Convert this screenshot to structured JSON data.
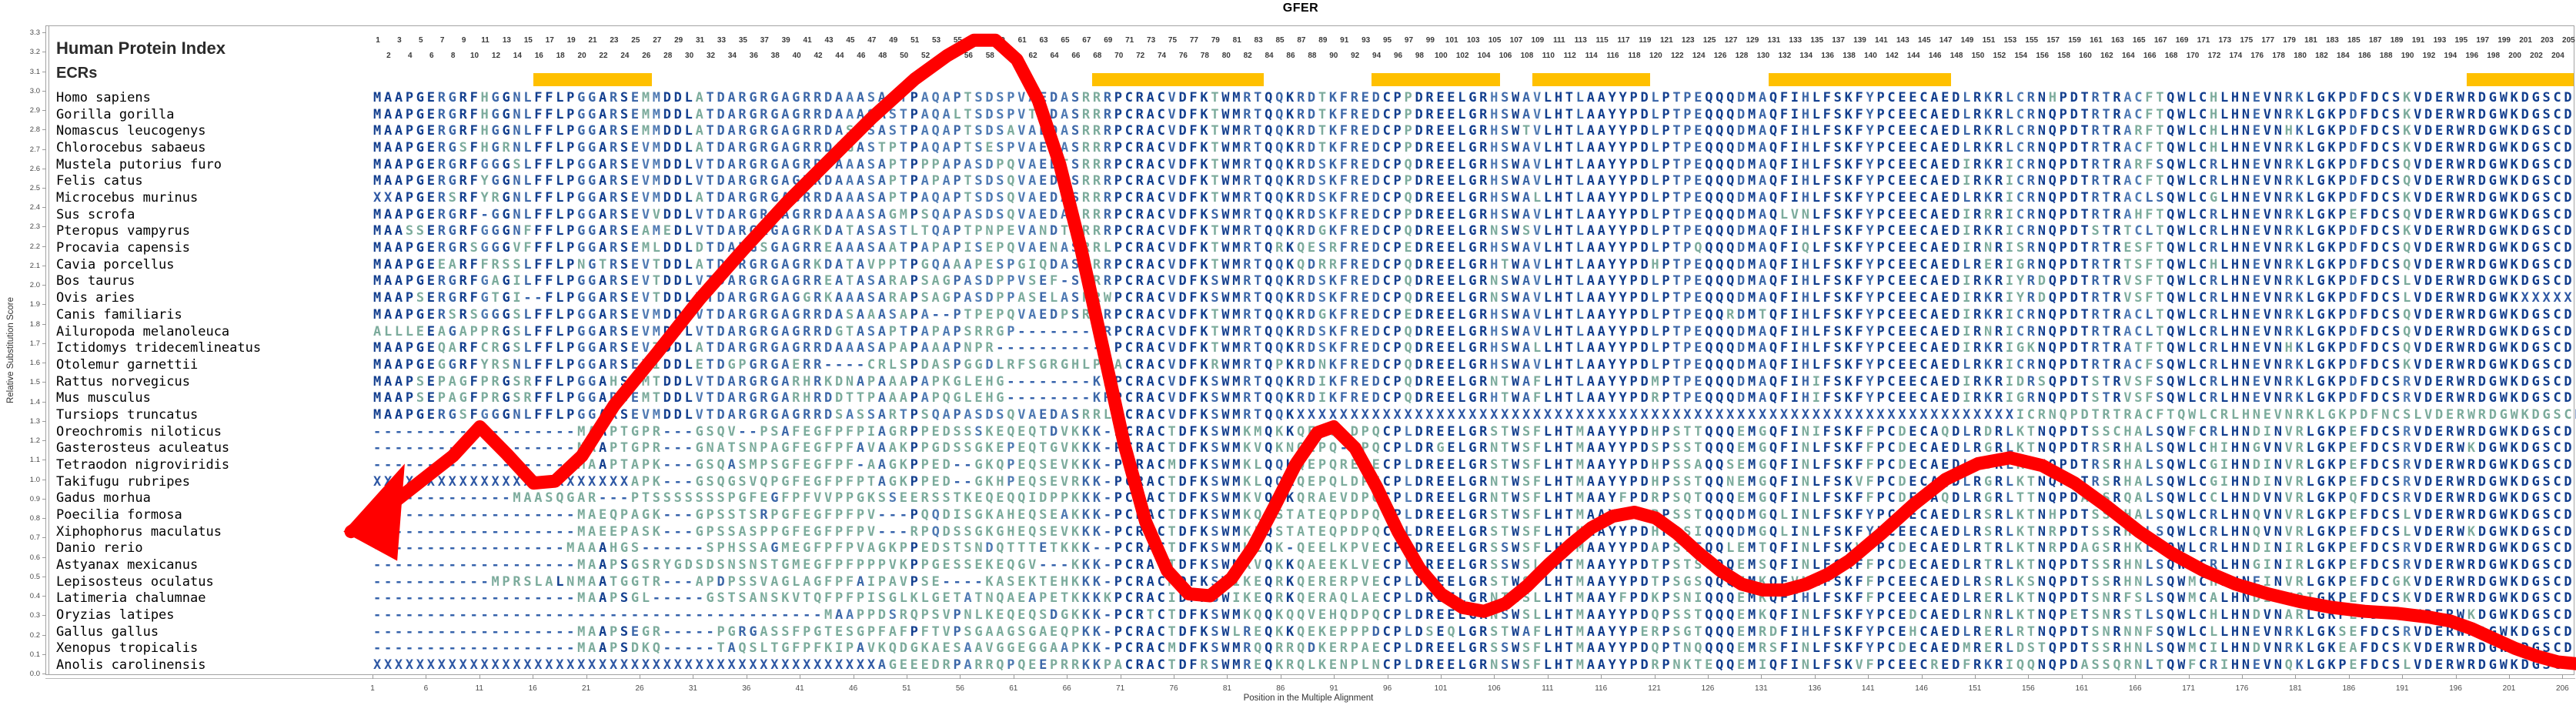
{
  "title": "GFER",
  "left_panel": {
    "header": "Human Protein Index",
    "ecrs_label": "ECRs"
  },
  "axes": {
    "y_label": "Relative Substitution Score",
    "x_label": "Position in the Multiple Alignment",
    "y_ticks": [
      "0.0",
      "0.1",
      "0.2",
      "0.3",
      "0.4",
      "0.5",
      "0.6",
      "0.7",
      "0.8",
      "0.9",
      "1.0",
      "1.1",
      "1.2",
      "1.3",
      "1.4",
      "1.5",
      "1.6",
      "1.7",
      "1.8",
      "1.9",
      "2.0",
      "2.1",
      "2.2",
      "2.3",
      "2.4",
      "2.5",
      "2.6",
      "2.7",
      "2.8",
      "2.9",
      "3.0",
      "3.1",
      "3.2",
      "3.3"
    ],
    "x_ticks": [
      1,
      6,
      11,
      16,
      21,
      26,
      31,
      36,
      41,
      46,
      51,
      56,
      61,
      66,
      71,
      76,
      81,
      86,
      91,
      96,
      101,
      106,
      111,
      116,
      121,
      126,
      131,
      136,
      141,
      146,
      151,
      156,
      161,
      166,
      171,
      176,
      181,
      186,
      191,
      196,
      201,
      206
    ],
    "column_numbers": {
      "start": 1,
      "end": 205
    }
  },
  "colors": {
    "ecr_bar": "#FFC000",
    "curve": "#FF0000",
    "letter_conserved": "#123e8e",
    "letter_majority": "#3c67a8",
    "letter_variable": "#4f7ab3",
    "letter_mismatch": "#7cab9c",
    "letter_gap": "#2f5ea9",
    "letter_x": "#2d57a4"
  },
  "ecr_regions": [
    [
      16,
      26
    ],
    [
      68,
      83
    ],
    [
      94,
      105
    ],
    [
      109,
      119
    ],
    [
      131,
      147
    ],
    [
      196,
      205
    ]
  ],
  "alignment": {
    "rows": [
      {
        "name": "Homo sapiens",
        "seq": "MAAPGERGRFHGGNLFFLPGGARSEMMDDLATDARGRGAGRRDAAASASTPAQAPTSDSPVAEDASRRRPCRACVDFKTWMRTQQKRDTKFREDCPPDREELGRHSWAVLHTLAAYYPDLPTPEQQQDMAQFIHLFSKFYPCEECAEDLRKRLCRNHPDTRTRACFTQWLCHLHNEVNRKLGKPDFDCSKVDERWRDGWKDGSCD"
      },
      {
        "name": "Gorilla gorilla",
        "seq": "MAAPGERGRFHGGNLFFLPGGARSEMMDDLATDARGRGAGRRDAAASASTPAQALTSDSPVTEDASRRRPCRACVDFKTWMRTQQKRDTKFREDCPPDREELGRHSWAVLHTLAAYYPDLPTPEQQQDMAQFIHLFSKFYPCEECAEDLRKRLCRNQPDTRTRACFTQWLCHLHNEVNRKLGKPDFDCSKVDERWRDGWKDGSCD"
      },
      {
        "name": "Nomascus leucogenys",
        "seq": "MAAPGERGRFHGGNLFFLPGGARSEMMDDLATDARGRGAGRRDASASASTPAQAPTSDSAVAEDASRRRPCRACVDFKTWMRTQQKRDTKFREDCPPDREELGRHSWTVLHTLAAYYPDLPTPEQQQDMAQFIHLFSKFYPCEECAEDLRKRLCRNQPDTRTRARFTQWLCHLHNEVNHKLGKPDFDCSKVDERWRDGWKDGSCD"
      },
      {
        "name": "Chlorocebus sabaeus",
        "seq": "MAAPGERGSFHGRNLFFLPGGARSEVMDDLATDARGRGAGRRDAGASTPTPAQAPTSESPVAEDASRRRPCRACVDFKTWMRTQQKRDTKFREDCPPDREELGRHSWAVLHTLAAYYPDLPTPEQQQDMAQFIHLFSKFYPCEECAEDLRKRLCRNQPDTRTRACFTQWLCHLHNEVNRKLGKPDFDCSKVDERWRDGWKDGSCD"
      },
      {
        "name": "Mustela putorius furo",
        "seq": "MAAPGERGRFGGGSLFFLPGGARSEVMDDLVTDARGRGAGRRDAAASAPTPPPAPASDPQVAEDTSRRRPCRACVDFKTWMRTQQKRDSKFREDCPQDREELGRHSWAVLHTLAAYYPDLPTPEQQQDMAQFIHLFSKFYPCEECAEDIRKRICRNQPDTRTRARFSQWLCRLHNEVNRKLGKPDFDCSQVDERWRDGWKDGSCD"
      },
      {
        "name": "Felis catus",
        "seq": "MAAPGERGRFYGGNLFFLPGGARSEVMDDLVTDARGRGAGRRDAAASAPTPAPAPTSDSQVAEDTSRRRPCRACVDFKTWMRTQQKRDSKFREDCPPDREELGRHSWAVLHTLAAYYPDLPTPEQQQDMAQFIHLFSKFYPCEECAEDIRKRICRNQPDTRTRACFTQWLCRLHNEVNRKLGKPDFDCSQVDERWRDGWKDGSCD"
      },
      {
        "name": "Microcebus murinus",
        "seq": "XXAPGERSRFYRGNLFFLPGGARSEVMDDLATDARGRGAGRRDAAASAPTPAQAPTSDSQVAEDASRRRPCRACVDFKTWMRTQQKRDSKFREDCPQDREELGRHSWALLHTLAAYYPDLPTPEQQQDMAQFIHLFSKFYPCEECAEDLRKRICRNQPDTRTRACLSQWLCGLHNEVNRKLGKPDFDCSKVDERWRDGWKDGSCD"
      },
      {
        "name": "Sus scrofa",
        "seq": "MAAPGERGRF-GGNLFFLPGGARSEVVDDLVTDARGRGAGRRDAAASAGMPSQAPASDSQVAEDASRRRPCRACVDFKSWMRTQQKRDSKFREDCPPDREELGRHSWAVLHTLAAYYPDLPTPEQQQDMAQLVNLFSKFYPCEECAEDIRRRICRNQPDTRTRAHFTQWLCRLHNEVNRKLGKPEFDCSQVDERWRDGWKDGSCD"
      },
      {
        "name": "Pteropus vampyrus",
        "seq": "MAASSERGRFGGGNFFFLPGGARSEAMEDLVTDARGRGAGRKDATASASTLTQAPTPNPEVANDTSRRRPCRACVDFKTWMRTQQKRDGKFREDCPQDREELGRNSWSVLHTLAAYYPDLPTPEQQQDMAQFIHLFSKFYPCEECAEDIRKRICRNQPDTSTRTCLTQWLCRLHNEVNRKLGKPDFDCSKVDERWRDGWKDGSCD"
      },
      {
        "name": "Procavia capensis",
        "seq": "MAAPGERGRSGGGVFFFLPGGARSEMLDDLDTDARGSGAGRREAAASAATPAPAPISEPQVAENASRRLPCRACVDFKTWMRTQRKQESRFREDCPEDREELGRHSWAVLHTLAAYYPDLPTPQQQQDMAQFIQLFSKFYPCEECAEDIRNRISRNQPDTRTRESFTQWLCRLHNEVNRKLGKPDFDCSQVDERWRDGWKDGSCD"
      },
      {
        "name": "Cavia porcellus",
        "seq": "MAAPGEEARFFRSSLFFLPNGTRSEVTDDLATDARGRGAGRKDATAVPPTPGQAAAPESPGIQDASRRRPCRACVDFKTWMRTQQKQDRRFREDCPQDREELGRHTWAVLHTLAAYYPDHPTPEQQQDMAQFIHLFSKFYPCEECAEDLRERIGRNQPDTRTRTSFTQWLCHLHNEVNRKLGKPDFDCSQVDERWRDGWKDGSCD"
      },
      {
        "name": "Bos taurus",
        "seq": "MAAPGERGRFGAGILFFLPGGARSEVTDDLVTDARGRGAGRREATASARAPSAGPASDPPVSEF-SPRRPCRACVDFKSWMRTQQKRDSKFREDCPQDREELGRNSWAVLHTLAAYYPDLPTPEQQQDMAQFIHLFSKFYPCEECAEDIRKRIYRDQPDTRTRVSFTQWLCRLHNEVNRKLGKPDFDCSLVDERWRDGWKDGSCD"
      },
      {
        "name": "Ovis aries",
        "seq": "MAAPSERGRFGTGI--FLPGGARSEVTDDLVTDARGRGAGGRKAAASARAPSAGPASDPPASELASPRWPCRACVDFKSWMRTQQKRDSKFREDCPQDREELGRNSWAVLHTLAAYYPDLPTPEQQQDMAQFIHLFSKFYPCEECAEDIRKRIYRDQPDTRTRVSFTQWLCRLHNEVNRKLGKPDFDCSLVDERWRDGWKXXXXX"
      },
      {
        "name": "Canis familiaris",
        "seq": "MAAPGERSRSGGGSLFFLPGGARSEVMDDLVTDARGRGAGRRDASAAASAPA--PTPEPQVAEDPSRRRPCRACVDFKTWMRTQQKRDGKFREDCPEDREELGRHSWAVLHTLAAYYPDLPTPEQQRDMTQFIHLFSKFYPCEECAEDIRKRICRNQPDTRTRACLTQWLCRLHNEVNRKLGKPDFDCSQVDERWRDGWKDGSCD"
      },
      {
        "name": "Ailuropoda melanoleuca",
        "seq": "ALLLEEAGAPPRGSLFFLPGGARSEVMDDLVTDARGRGAGRRDGTASAPTPAPAPSRRGP--------RPCRACVDFKTWMRTQQKRDSKFREDCPQDREELGRHSWAVLHTLAAYYPDLPTPEQQQDMAQFIHLFSKFYPCEECAEDIRNRICRNQPDTRTRACLTQWLCRLHNEVNRKLGKPDFDCSQVDERWRDGWKDGSCD"
      },
      {
        "name": "Ictidomys tridecemlineatus",
        "seq": "MAAPGEQARFCRGSLFFLPGGARSEVTDDLATDARGRGAGRRDAAASAPAPAAAPNPR-----------PCRACVDFKTWMRTQQKRDSKFREDCPQDREELGRHSWALLHTLAAYYPDLPTPEQQQDMAQFIHLFSKFYPCEECAEDIRKRIGKNQPDTRTRATFTQWLCRLHNEVNHKLGKPDFDCSQVDERWRDGWKDGSCD"
      },
      {
        "name": "Otolemur garnettii",
        "seq": "MAAPGEGGRFYRSNLFFLPGGARSEVIDDLETDGPGRGAERR----CRLSPDASPGGDLRFSGRGHLPEACRACVDFKRWMRTQPKRDNKFREDCPQDREELGRHSWAVLHTLAAYYPDLPTPEQQQDMAQFIHLFSKFYPCEECAEDLRKRICRNQPDTRTRACFSQWLCRLHNEVNRKLGKPDFDCSKVDERWRDGWKDGSCD"
      },
      {
        "name": "Rattus norvegicus",
        "seq": "MAAPSEPAGFPRGSRFFLPGGAHSEMTDDLVTDARGRGARHRKDNAPAAAPAPKGLEHG--------KRPCRACVDFKSWMRTQQKRDIKFREDCPQDREELGRNTWAFLHTLAAYYPDMPTPEQQQDMAQFIHIFSKFYPCEECAEDIRKRIDRSQPDTSTRVSFSQWLCRLHNEVNRKLGKPDFDCSRVDERWRDGWKDGSCD"
      },
      {
        "name": "Mus musculus",
        "seq": "MAAPSEPAGFPRGSRFFLPGGARSEMTDDLVTDARGRGARHRDDTTPAAAPAPQGLEHG--------KRPCRACVDFKSWMRTQQKRDIKFREDCPQDREELGRHTWAFLHTLAAYYPDRPTPEQQQDMAQFIHIFSKFYPCEECAEDIRKRIGRNQPDTSTRVSFSQWLCRLHNEVNRKLGKPDFDCSRVDERWRDGWKDGSCD"
      },
      {
        "name": "Tursiops truncatus",
        "seq": "MAAPGERGSFGGGNLFFLPGGARSEVMDDLVTDARGRGAGRRDSASSARTPSQAPASDSQVAEDASRRLPCRACVDFKSWMRTQQKXXXXXXXXXXXXXXXXXXXXXXXXXXXXXXXXXXXXXXXXXXXXXXXXXXXXXXXXXXXXXXXXXXXICRNQPDTRTRACFTQWLCRLHNEVNRKLGKPDFNCSLVDERWRDGWKDGSCD"
      },
      {
        "name": "Oreochromis niloticus",
        "seq": "-------------------MAAPTGPR---GSQV--PSAFEGFPFPIAGRPPEDSSSKEQEQTDVKKK-PCRACTDFKSWMKMQKKQEPQ-DPQCPLDREELGRSTWSFLHTMAAYYPDHPSTTQQQEMGQFINIFSKFFPCDECAQDLRDRLKTNQPDTSSCHALSQWFCRLHNDINVRLGKPEFDCSRVDERWRDGWKDGSCD"
      },
      {
        "name": "Gasterosteus aculeatus",
        "seq": "-------------------MAAPTGPR---GNATSNPAGFEGFPFAVAAKPPGDSSGKEPEQTGVKKK-PCRACTDFKSWMKVQKNQEPQ-DPQCPLDRGELGRNTWSFLHTMAAYYPDSPSSTQQQEMGQFINLFSKFFPCDECAEDLRGRLKTNQPDTRSRHALSQWLCHIHNGVNVRLGKPEFDCSRVDERWKDGWKDGSCD"
      },
      {
        "name": "Tetraodon nigroviridis",
        "seq": "-------------------MAAPTAPK---GSQASMPSGFEGFPF-AAGKPPED--GKQPEQSEVKKK-PCRACMDFKSWMKLQQKQEPQREPECPLDREELGRSTWSFLHTMAAYYPDHPSSAQQSEMGQFINLFSKFFPCDECAEDLRSRLKTNQPDTRSRHALSQWLCGIHNDINVRLGKPEFDCSRVDERWRDGWKDGSCD"
      },
      {
        "name": "Takifugu rubripes",
        "seq": "XXXXXXXXXXXXXXXXXXXXXXXXAPK---GSQGSVQPGFEGFPFPTAGKPPED--GKHPEQSEVRKK-PCRACTDFKSWMKLQQKQEPQLDPECPLDREELGRNTWSFLHTMAAYYPDHPSSTQQNEMGQFINLFSKVFPCDECAQDLRGRLKTNQPDTRSRHALSQWLCGIHNDINVRLGKPEFDCSRVDERWRDGWKDGSCD"
      },
      {
        "name": "Gadus morhua",
        "seq": "-------------MAASQGAR---PTSSSSSSSPGFEGFPFVVPPGKSSEERSSTKEQEQQIDPPKKK-PCRACTDFKSWMKVQDKQRAEVDPQCPLDREELGRNTWSFLHTMAAYFPDRPSQTQQQEMGQFINLFSKFFPCDECAQDLRGRLTTNQPDASSRQALSQWLCCLHNDVNVRLGKPQFDCSRVDERWRDGWKDGSCD"
      },
      {
        "name": "Poecilia formosa",
        "seq": "-------------------MAEQPAGK---GPSSTSRPGFEGFPFPV---PQQDISGKAHEQSEAKKK-PCRACTDFKSWMKQQSTATEQPDPQCPLDREELGRSTWSFLHTMAAYYPDRPSSTQQQDMGQLINLFSKFYPCEECAEDLRSRLKTNHPDTSSRHALSQWLCRLHNQVNVRLGKPEFDCSLVDERWRDGWKDGSCD"
      },
      {
        "name": "Xiphophorus maculatus",
        "seq": "-------------------MAEEPASK---GPSSASPPGFEGFPFPV---RPQDSSGKGHEQSEVKKK-PCRACTDFKSWMKLQSTATEQPDPQCPLDREELGRSTWSFLHTMAAYYPDHPSSIQQQDMGQLINLFSKFYPCEECAEDLRSRLKTNRPDTSSRHALSQWLCRLHNQVNVRLGKPEFDCSLVDERWKDGWKDGSCD"
      },
      {
        "name": "Danio rerio",
        "seq": "------------------MAAAHGS------SPHSSAGMEGFPFPVAGKPPEDSTSNDQTTTETKKK--PCRACTDFKSWMKLQK-QEELKPVECPLDREELGRSSWSFLHTMAAYYPDAPSTEQQLEMTQFINLFSKVFPCDECAEDLRTRLKTNRPDAGSRHKLSQWLCRLHNDINIRLGKPEFDCSRVDERWRDGWKDGSCD"
      },
      {
        "name": "Astyanax mexicanus",
        "seq": "-------------------MAAPSGSRYGDSDSNSNSTGMEGFPFPPPVKPPGESSEKEQGV---KKK-PCRACTDFKSWMKVQKKQAEEKLVECPLDREELGRSSWSLLHTMAAYYPDTPSTSQQQEMSQFINLFSKFFPCDECAEDLRTRLKTNQPDTSSRHNLSQWMCRLHNGINIRLGKPEFDCSRVDERWRDGWKDGSCD"
      },
      {
        "name": "Lepisosteus oculatus",
        "seq": "-----------MPRSLALNMAATGGTR---APDPSSVAGLAGFPFAIPAVPSE----KASEKTEHKKK-PCRACMDFKSWIKEQRKQERERPVECPLDREELGRSTWSFLHTMAAYYPDTPSGSQQQEMKQFVNLFSKFFPCEECAEDLRSRLKSNQPDTSSRHNLSQWMCHLHNEINVRLGKPEFDCGKVDERWRDGWKDGSCD"
      },
      {
        "name": "Latimeria chalumnae",
        "seq": "-------------------MAAPSGL-----GSTSANSKVTQFPFPISGLKLGETATNQAEAPETKKKKPCRACIDFKSWIKEQRKQERAQLAECPLDREELGRNTWSLLHTMAAYFPDKPSNIQQQEMKQFIHLFSKFFPCEECAEDLRERLKTNQPDTSNRFSLSQWMCALHNDINKQIGKPEFDCSKVDERWRDGWKDGSCD"
      },
      {
        "name": "Oryzias latipes",
        "seq": "------------------------------------------MAAPPDSRQPSVPNLKEQEQSDGKKK-PCRTCTDFKSWMKQQKQQVEHQDPQCPLDREELGRNSWSLLHTMAAYYPDQPSSTQQQEMKQFINLFSKFYPCEDCAEDLRNRLKTNQPETSNRSTLSQWLCHLHNDVNARLGKPEFDCSRVDERWKDGWKDGSCD"
      },
      {
        "name": "Gallus gallus",
        "seq": "-------------------MAAPSEGR-----PGRGASSFPGTESGPFAFPFTVPSGAAGSGAEQPKK-PCRACTDFKSWLREQKKQEKEPPPDCPLDSEQLGRSTWAFLHTMAAYYPERPSGTQQQEMRDFIHLFSKFYPCEHCAEDLRERLRTNQPDTSNRNNFSQWLCLLHNEVNRKLGKSEFDCSRVDERWRDGWKDGSCD"
      },
      {
        "name": "Xenopus tropicalis",
        "seq": "-------------------MAAPSDKQ-----TAQSLTGFPFKIPAVKQDGKAESAAVGGEGGAAPKK-PCRACMDFKSWMRQQRRQDKERPAECPLDREELGRSSWSFLHTMAAYYPDQPTNQQQQEMRSFINLFSKFYPCDECAEDMRERLDSTQPDTSSRHNLSQWMCILHNDVNRKLGKEAFDCSKVDERWRDGWKDGSCD"
      },
      {
        "name": "Anolis carolinensis",
        "seq": "XXXXXXXXXXXXXXXXXXXXXXXXXXXXXXXXXXXXXXXXXXXXXXXAGEEEDRPARRQPQEEPRRKKPACRACTDFRSWMREQKRQLKENPLNCPLDREELGRNSWSFLHTMAAYYPDRPNKTEQQEMIQFINLFSKVFPCEECREDFRKRIQQNQPDASSQRNLTQWFCRIHNEVNQKLGKPEFDCSLVDERWRDGWKDGSCD"
      }
    ]
  },
  "chart_data": {
    "type": "line",
    "title": "GFER",
    "xlabel": "Position in the Multiple Alignment",
    "ylabel": "Relative Substitution Score",
    "xlim": [
      1,
      206
    ],
    "ylim": [
      0.0,
      3.3
    ],
    "grid": false,
    "legend": "none",
    "series_name": "Relative Substitution Score",
    "curve_points": [
      [
        -1.5,
        0.73
      ],
      [
        2,
        0.86
      ],
      [
        5,
        0.99
      ],
      [
        8,
        1.12
      ],
      [
        10.5,
        1.27
      ],
      [
        13,
        1.13
      ],
      [
        15.5,
        0.98
      ],
      [
        17.5,
        0.99
      ],
      [
        20,
        1.12
      ],
      [
        23,
        1.38
      ],
      [
        27,
        1.65
      ],
      [
        31,
        1.93
      ],
      [
        35,
        2.18
      ],
      [
        39,
        2.42
      ],
      [
        43,
        2.64
      ],
      [
        47,
        2.86
      ],
      [
        51,
        3.06
      ],
      [
        54,
        3.18
      ],
      [
        56.5,
        3.26
      ],
      [
        58.5,
        3.26
      ],
      [
        60.5,
        3.16
      ],
      [
        62.5,
        2.95
      ],
      [
        64.5,
        2.62
      ],
      [
        66.5,
        2.18
      ],
      [
        68.5,
        1.68
      ],
      [
        70.5,
        1.18
      ],
      [
        72.5,
        0.78
      ],
      [
        74.5,
        0.53
      ],
      [
        76.5,
        0.41
      ],
      [
        78.5,
        0.4
      ],
      [
        80.5,
        0.49
      ],
      [
        82.5,
        0.65
      ],
      [
        84.5,
        0.86
      ],
      [
        86.5,
        1.08
      ],
      [
        88.5,
        1.24
      ],
      [
        90,
        1.27
      ],
      [
        92,
        1.16
      ],
      [
        94,
        0.96
      ],
      [
        96,
        0.73
      ],
      [
        98,
        0.54
      ],
      [
        100,
        0.41
      ],
      [
        102,
        0.34
      ],
      [
        104,
        0.32
      ],
      [
        106,
        0.36
      ],
      [
        108,
        0.45
      ],
      [
        110,
        0.56
      ],
      [
        112,
        0.66
      ],
      [
        114,
        0.75
      ],
      [
        116,
        0.81
      ],
      [
        118,
        0.83
      ],
      [
        120,
        0.8
      ],
      [
        122,
        0.72
      ],
      [
        124,
        0.62
      ],
      [
        126,
        0.53
      ],
      [
        128,
        0.46
      ],
      [
        130,
        0.43
      ],
      [
        132,
        0.43
      ],
      [
        134,
        0.46
      ],
      [
        136,
        0.51
      ],
      [
        138,
        0.58
      ],
      [
        141,
        0.72
      ],
      [
        144,
        0.87
      ],
      [
        147,
        1.0
      ],
      [
        150,
        1.08
      ],
      [
        153,
        1.11
      ],
      [
        156,
        1.07
      ],
      [
        159,
        0.98
      ],
      [
        162,
        0.86
      ],
      [
        165,
        0.73
      ],
      [
        168,
        0.62
      ],
      [
        171,
        0.53
      ],
      [
        174,
        0.46
      ],
      [
        177,
        0.41
      ],
      [
        180,
        0.37
      ],
      [
        183,
        0.34
      ],
      [
        186,
        0.32
      ],
      [
        189,
        0.31
      ],
      [
        192,
        0.29
      ],
      [
        194,
        0.27
      ],
      [
        196,
        0.23
      ],
      [
        198,
        0.18
      ],
      [
        200,
        0.13
      ],
      [
        202,
        0.09
      ],
      [
        204,
        0.06
      ],
      [
        205.8,
        0.05
      ]
    ],
    "start_wedge": [
      [
        -2.2,
        0.73
      ],
      [
        3.5,
        1.08
      ],
      [
        2.8,
        0.58
      ]
    ]
  }
}
